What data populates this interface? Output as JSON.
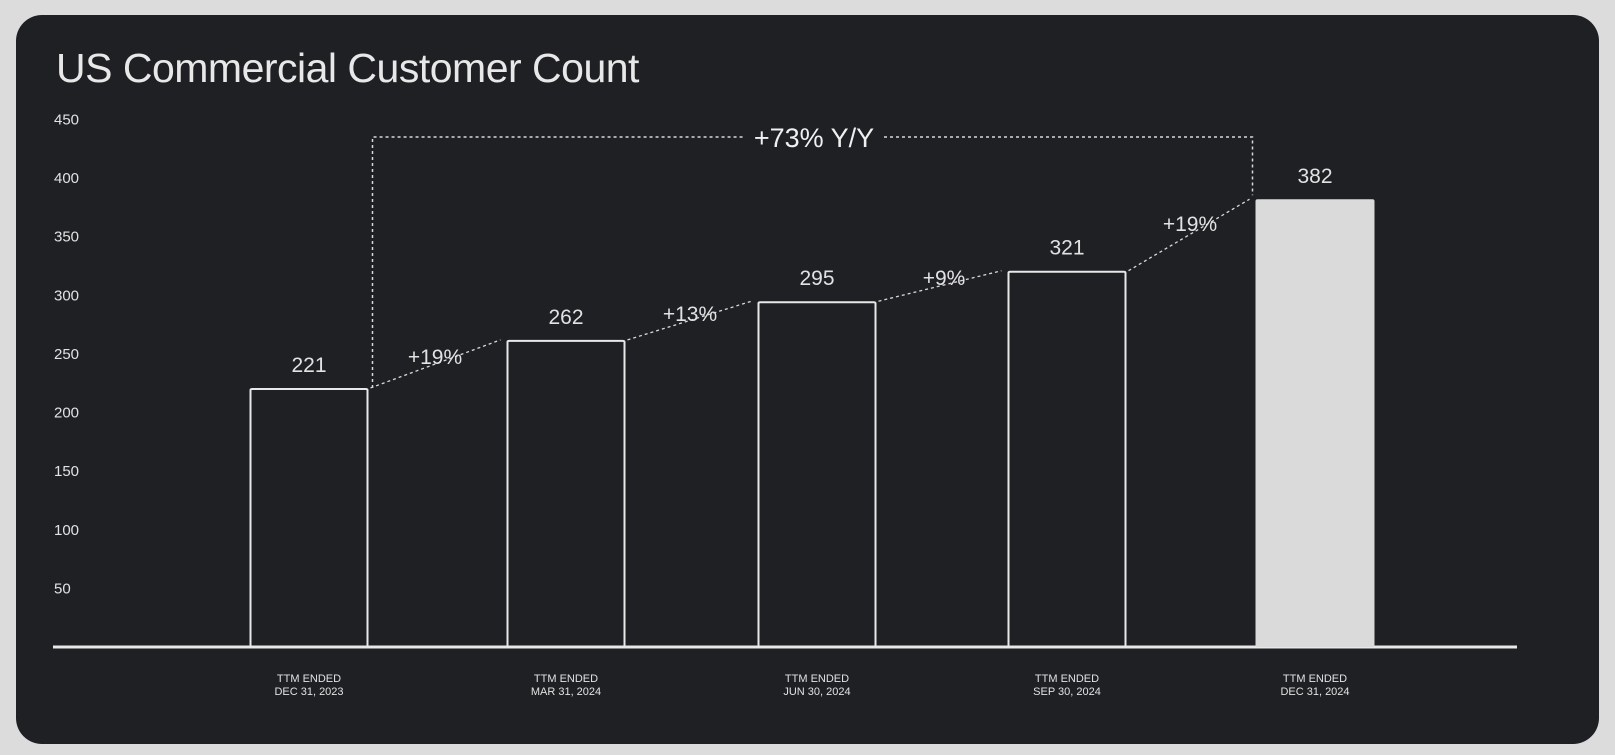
{
  "chart_data": {
    "type": "bar",
    "title": "US Commercial Customer Count",
    "categories": [
      [
        "TTM ENDED",
        "DEC 31, 2023"
      ],
      [
        "TTM ENDED",
        "MAR 31, 2024"
      ],
      [
        "TTM ENDED",
        "JUN 30, 2024"
      ],
      [
        "TTM ENDED",
        "SEP 30, 2024"
      ],
      [
        "TTM ENDED",
        "DEC 31, 2024"
      ]
    ],
    "values": [
      221,
      262,
      295,
      321,
      382
    ],
    "highlight_index": 4,
    "growth_labels": [
      "+19%",
      "+13%",
      "+9%",
      "+19%"
    ],
    "yoy_label": "+73% Y/Y",
    "yticks": [
      50,
      100,
      150,
      200,
      250,
      300,
      350,
      400,
      450
    ],
    "ylim": [
      0,
      450
    ],
    "xlabel": "",
    "ylabel": "",
    "grid": false,
    "colors": {
      "background": "#1e2024",
      "outline": "#e8e8e8",
      "highlight_fill": "#dadada",
      "text": "#e2e2e2"
    }
  }
}
